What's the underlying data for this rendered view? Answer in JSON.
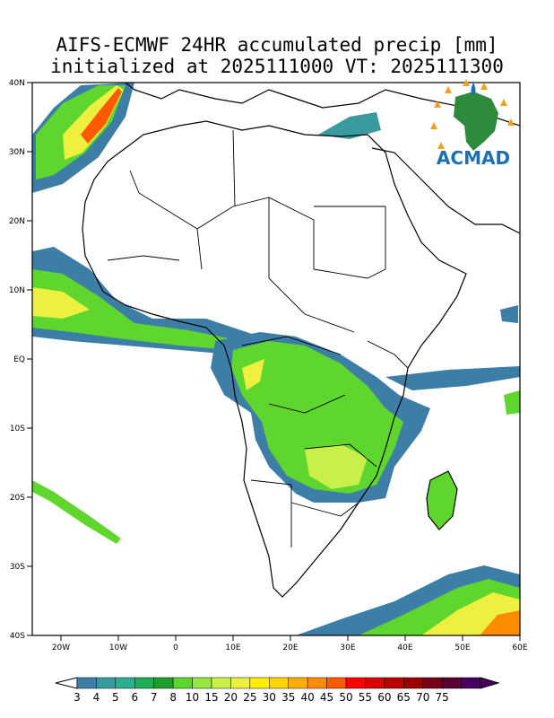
{
  "title": {
    "line1": "AIFS-ECMWF 24HR accumulated precip [mm]",
    "line2": "initialized at 2025111000 VT: 2025111300"
  },
  "axes": {
    "lat_labels": [
      "40N",
      "30N",
      "20N",
      "10N",
      "EQ",
      "10S",
      "20S",
      "30S",
      "40S"
    ],
    "lon_labels": [
      "20W",
      "10W",
      "0",
      "10E",
      "20E",
      "30E",
      "40E",
      "50E",
      "60E"
    ]
  },
  "logo": {
    "text": "ACMAD"
  },
  "colorbar": {
    "labels": [
      "3",
      "4",
      "5",
      "6",
      "7",
      "8",
      "10",
      "15",
      "20",
      "25",
      "30",
      "35",
      "40",
      "45",
      "50",
      "55",
      "60",
      "65",
      "70",
      "75"
    ],
    "colors": [
      "#3d7ea6",
      "#3a9aa0",
      "#2fae8f",
      "#1fae55",
      "#1f9c2b",
      "#5fd62e",
      "#98e640",
      "#c8f048",
      "#eef040",
      "#fff000",
      "#ffd400",
      "#ffae00",
      "#ff8c00",
      "#ff5a00",
      "#ff0000",
      "#dd0000",
      "#bb0000",
      "#990000",
      "#760018",
      "#5a0030",
      "#460060"
    ]
  },
  "colors": {
    "land": "#ffffff",
    "ocean": "#ffffff",
    "border": "#000000"
  }
}
